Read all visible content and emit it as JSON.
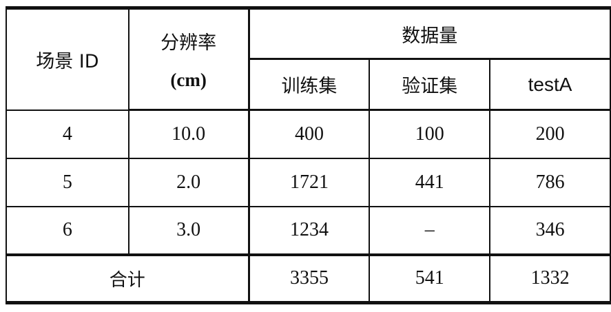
{
  "headers": {
    "scene_id": "场景 ID",
    "resolution": "分辨率",
    "resolution_unit": "(cm)",
    "data_volume": "数据量",
    "train": "训练集",
    "val": "验证集",
    "testA": "testA"
  },
  "rows": [
    {
      "scene": "4",
      "resolution": "10.0",
      "train": "400",
      "val": "100",
      "testA": "200"
    },
    {
      "scene": "5",
      "resolution": "2.0",
      "train": "1721",
      "val": "441",
      "testA": "786"
    },
    {
      "scene": "6",
      "resolution": "3.0",
      "train": "1234",
      "val": "–",
      "testA": "346"
    }
  ],
  "total": {
    "label": "合计",
    "train": "3355",
    "val": "541",
    "testA": "1332"
  }
}
